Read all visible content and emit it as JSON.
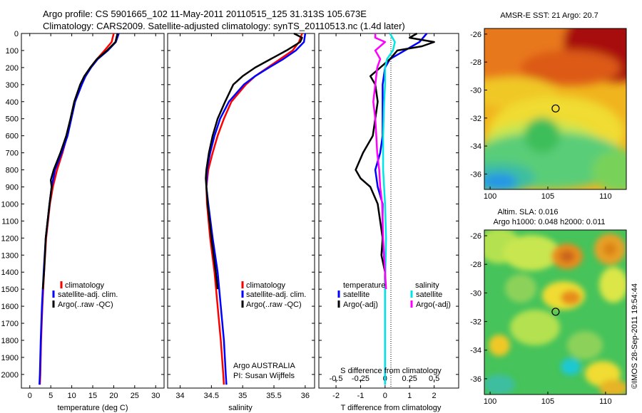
{
  "header": {
    "line1": "Argo profile: CS 5901665_102 11-May-2011 20110515_125 31.313S 105.673E",
    "line2": "Climatology: CARS2009. Satellite-adjusted climatology: synTS_20110513.nc (1.4d later)"
  },
  "colors": {
    "climatology": "#ff0000",
    "satellite": "#0000ff",
    "argo": "#000000",
    "salinity_satellite": "#00e5e5",
    "salinity_argo": "#ff00ff"
  },
  "chart_data": [
    {
      "type": "line",
      "xlabel": "temperature (deg C)",
      "ylabel": "",
      "xlim": [
        -2,
        32
      ],
      "ylim": [
        2080,
        0
      ],
      "xticks": [
        "0",
        "5",
        "10",
        "15",
        "20",
        "25",
        "30"
      ],
      "yticks": [
        "0",
        "100",
        "200",
        "300",
        "400",
        "500",
        "600",
        "700",
        "800",
        "900",
        "1000",
        "1100",
        "1200",
        "1300",
        "1400",
        "1500",
        "1600",
        "1700",
        "1800",
        "1900",
        "2000"
      ],
      "legend": [
        "climatology",
        "satellite-adj. clim.",
        "Argo(..raw -QC)"
      ],
      "series": [
        {
          "name": "climatology",
          "y": [
            0,
            50,
            100,
            150,
            200,
            250,
            300,
            400,
            500,
            600,
            700,
            800,
            900,
            1000,
            1200,
            1400,
            1600,
            1800,
            2000,
            2060
          ],
          "x": [
            20.0,
            19.5,
            17.8,
            16.0,
            14.4,
            13.2,
            12.3,
            10.7,
            9.8,
            8.9,
            7.8,
            6.5,
            5.5,
            4.8,
            3.9,
            3.4,
            3.0,
            2.7,
            2.5,
            2.4
          ]
        },
        {
          "name": "satellite-adj. clim.",
          "y": [
            0,
            50,
            100,
            150,
            200,
            250,
            300,
            400,
            500,
            600,
            700,
            800,
            900,
            1000,
            1200,
            1400,
            1600,
            1800,
            2000,
            2060
          ],
          "x": [
            21.2,
            20.5,
            18.6,
            16.2,
            14.6,
            13.3,
            12.4,
            10.8,
            9.9,
            9.0,
            7.6,
            6.0,
            5.2,
            4.7,
            3.8,
            3.3,
            2.9,
            2.6,
            2.4,
            2.3
          ]
        },
        {
          "name": "Argo(..raw -QC)",
          "y": [
            0,
            50,
            100,
            150,
            200,
            250,
            300,
            400,
            500,
            600,
            700,
            800,
            860,
            900,
            1000,
            1200,
            1400,
            1500
          ],
          "x": [
            20.9,
            20.4,
            18.4,
            16.0,
            14.4,
            13.0,
            12.0,
            10.6,
            9.7,
            8.7,
            7.3,
            5.7,
            5.0,
            5.2,
            4.7,
            3.8,
            3.4,
            3.1
          ]
        }
      ]
    },
    {
      "type": "line",
      "xlabel": "salinity",
      "ylabel": "",
      "xlim": [
        33.8,
        36.15
      ],
      "ylim": [
        2080,
        0
      ],
      "xticks": [
        "34",
        "34.5",
        "35",
        "35.5",
        "36"
      ],
      "legend": [
        "climatology",
        "satellite-adj. clim.",
        "Argo(..raw -QC)"
      ],
      "annotations": [
        "Argo AUSTRALIA",
        "PI: Susan Wijffels"
      ],
      "series": [
        {
          "name": "climatology",
          "y": [
            0,
            50,
            100,
            150,
            200,
            250,
            300,
            400,
            500,
            600,
            700,
            800,
            900,
            1000,
            1200,
            1400,
            1600,
            1800,
            2000,
            2060
          ],
          "x": [
            35.95,
            35.9,
            35.8,
            35.6,
            35.4,
            35.2,
            35.05,
            34.82,
            34.7,
            34.6,
            34.52,
            34.45,
            34.42,
            34.43,
            34.48,
            34.55,
            34.6,
            34.65,
            34.69,
            34.7
          ]
        },
        {
          "name": "satellite-adj. clim.",
          "y": [
            0,
            50,
            100,
            150,
            200,
            250,
            300,
            400,
            500,
            600,
            700,
            800,
            900,
            1000,
            1200,
            1400,
            1600,
            1800,
            2000,
            2060
          ],
          "x": [
            36.0,
            35.98,
            35.85,
            35.65,
            35.42,
            35.2,
            35.02,
            34.78,
            34.64,
            34.55,
            34.48,
            34.43,
            34.42,
            34.45,
            34.52,
            34.6,
            34.65,
            34.7,
            34.73,
            34.74
          ]
        },
        {
          "name": "Argo(..raw -QC)",
          "y": [
            0,
            25,
            50,
            100,
            150,
            200,
            250,
            300,
            400,
            500,
            600,
            700,
            800,
            850,
            900,
            1000,
            1200,
            1400,
            1500
          ],
          "x": [
            35.82,
            35.95,
            35.92,
            35.7,
            35.45,
            35.2,
            35.0,
            34.85,
            34.72,
            34.6,
            34.52,
            34.46,
            34.42,
            34.41,
            34.42,
            34.44,
            34.5,
            34.57,
            34.6
          ]
        }
      ]
    },
    {
      "type": "line",
      "xlabel": "T difference from climatology",
      "xlabel_top": "S difference from climatology",
      "xlim": [
        -2.7,
        3.0
      ],
      "ylim": [
        2080,
        0
      ],
      "xticks_bottom": [
        "-2",
        "-1",
        "0",
        "1",
        "2"
      ],
      "xticks_top": [
        "-0.5",
        "-0.25",
        "0",
        "0.25",
        "0.5"
      ],
      "legend_titles": [
        "temperature",
        "salinity"
      ],
      "legend": [
        "satellite",
        "Argo(-adj)",
        "satellite",
        "Argo(-adj)"
      ],
      "series": [
        {
          "name": "temperature satellite",
          "y": [
            0,
            50,
            100,
            150,
            200,
            300,
            400,
            500,
            600,
            700,
            800,
            900,
            1000,
            1200,
            1400,
            1600,
            1800,
            2000,
            2060
          ],
          "x": [
            1.7,
            1.4,
            0.8,
            0.2,
            0.0,
            -0.1,
            -0.1,
            -0.1,
            -0.1,
            -0.2,
            -0.4,
            -0.3,
            -0.1,
            -0.1,
            0.0,
            0.0,
            0.0,
            0.0,
            0.0
          ]
        },
        {
          "name": "temperature Argo(-adj)",
          "y": [
            0,
            25,
            50,
            75,
            100,
            150,
            200,
            250,
            300,
            400,
            500,
            600,
            700,
            800,
            850,
            900,
            1000,
            1200,
            1300,
            1400,
            1500
          ],
          "x": [
            1.3,
            1.0,
            2.0,
            1.5,
            0.5,
            0.2,
            -0.2,
            -0.6,
            -0.4,
            -0.3,
            -0.4,
            -0.5,
            -0.9,
            -1.2,
            -1.0,
            -0.6,
            -0.3,
            -0.1,
            -0.15,
            0.0,
            0.0
          ]
        },
        {
          "name": "salinity satellite",
          "y": [
            0,
            50,
            100,
            150,
            200,
            300,
            400,
            600,
            800,
            1000,
            1200,
            1500,
            1800,
            2060
          ],
          "x": [
            0.05,
            0.1,
            0.08,
            0.02,
            0.0,
            0.0,
            -0.01,
            -0.02,
            -0.02,
            0.0,
            0.01,
            0.0,
            0.0,
            0.0
          ]
        },
        {
          "name": "salinity Argo(-adj)",
          "y": [
            0,
            25,
            50,
            100,
            150,
            200,
            300,
            400,
            500,
            600,
            700,
            800,
            900,
            1000,
            1200,
            1400,
            1500
          ],
          "x": [
            -0.1,
            -0.1,
            0.0,
            -0.1,
            -0.05,
            -0.08,
            -0.1,
            -0.12,
            -0.1,
            -0.09,
            -0.08,
            -0.06,
            -0.05,
            -0.03,
            -0.02,
            0.0,
            0.01
          ]
        }
      ]
    },
    {
      "type": "heatmap",
      "title": "AMSR-E SST: 21 Argo: 20.7",
      "xlim": [
        99.5,
        111.8
      ],
      "ylim": [
        -37.1,
        -25.6
      ],
      "xticks": [
        "100",
        "105",
        "110"
      ],
      "yticks": [
        "-26",
        "-28",
        "-30",
        "-32",
        "-34",
        "-36"
      ],
      "marker": {
        "lon": 105.673,
        "lat": -31.313
      }
    },
    {
      "type": "heatmap",
      "title": "Altim. SLA: 0.016",
      "subtitle": "Argo h1000: 0.048 h2000: 0.011",
      "xlim": [
        99.5,
        111.8
      ],
      "ylim": [
        -37.1,
        -25.6
      ],
      "xticks": [
        "100",
        "105",
        "110"
      ],
      "yticks": [
        "-26",
        "-28",
        "-30",
        "-32",
        "-34",
        "-36"
      ],
      "marker": {
        "lon": 105.673,
        "lat": -31.313
      }
    }
  ],
  "footer": {
    "stamp": "©IMOS 28-Sep-2011 19:54:44"
  }
}
